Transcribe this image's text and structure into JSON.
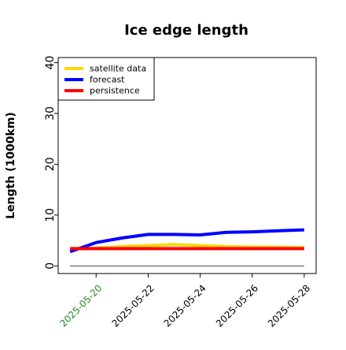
{
  "chart_data": {
    "type": "line",
    "title": "Ice edge length",
    "xlabel": "",
    "ylabel": "Length (1000km)",
    "ylim": [
      -1.5,
      41
    ],
    "xlim": [
      "2025-05-18T13:00",
      "2025-05-28T11:00"
    ],
    "yticks": [
      "0",
      "10",
      "20",
      "30",
      "40"
    ],
    "xticks": [
      "2025-05-20",
      "2025-05-22",
      "2025-05-24",
      "2025-05-26",
      "2025-05-28"
    ],
    "highlighted_xtick": "2025-05-20",
    "highlight_color": "#228B22",
    "legend_position": "upper left",
    "grid": false,
    "series": [
      {
        "name": "satellite data",
        "color": "#FFD700",
        "x": [
          "2025-05-19",
          "2025-05-20",
          "2025-05-21",
          "2025-05-22",
          "2025-05-23",
          "2025-05-24",
          "2025-05-25",
          "2025-05-26",
          "2025-05-27",
          "2025-05-28"
        ],
        "y": [
          3.3,
          3.5,
          3.8,
          4.0,
          4.2,
          4.0,
          3.8,
          3.7,
          3.7,
          3.6
        ]
      },
      {
        "name": "forecast",
        "color": "#0000FF",
        "x": [
          "2025-05-19",
          "2025-05-20",
          "2025-05-21",
          "2025-05-22",
          "2025-05-23",
          "2025-05-24",
          "2025-05-25",
          "2025-05-26",
          "2025-05-27",
          "2025-05-28"
        ],
        "y": [
          2.8,
          4.6,
          5.5,
          6.2,
          6.2,
          6.1,
          6.6,
          6.7,
          6.9,
          7.1
        ]
      },
      {
        "name": "persistence",
        "color": "#FF0000",
        "x": [
          "2025-05-19",
          "2025-05-28"
        ],
        "y": [
          3.4,
          3.4
        ]
      },
      {
        "name": "",
        "color": "#555555",
        "x": [
          "2025-05-19",
          "2025-05-28"
        ],
        "y": [
          0,
          0
        ]
      }
    ]
  }
}
